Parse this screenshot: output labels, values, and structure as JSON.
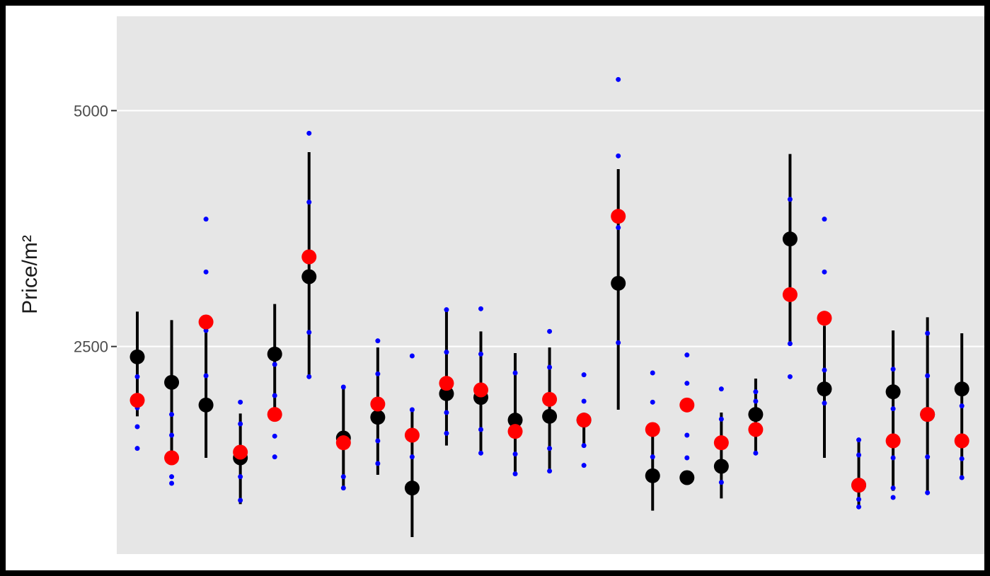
{
  "chart_data": {
    "type": "scatter",
    "ylabel": "Price/m²",
    "yticks": [
      2500,
      5000
    ],
    "ylim": [
      300,
      6000
    ],
    "grid": true,
    "legend": "none",
    "colors": {
      "panel": "#e6e6e6",
      "grid": "#ffffff",
      "point_black": "#000000",
      "point_red": "#ff0000",
      "point_blue": "#0000ff"
    },
    "groups": [
      {
        "black": 2390,
        "red": 1930,
        "range": [
          1760,
          2870
        ],
        "blue": [
          1420,
          1650,
          1850,
          2180
        ]
      },
      {
        "black": 2120,
        "red": 1320,
        "range": [
          1320,
          2780
        ],
        "blue": [
          1050,
          1120,
          1560,
          1780
        ]
      },
      {
        "black": 1880,
        "red": 2760,
        "range": [
          1320,
          2730
        ],
        "blue": [
          2190,
          2670,
          3290,
          3850
        ]
      },
      {
        "black": 1320,
        "red": 1380,
        "range": [
          830,
          1790
        ],
        "blue": [
          870,
          1120,
          1340,
          1680,
          1910
        ]
      },
      {
        "black": 2420,
        "red": 1780,
        "range": [
          1760,
          2950
        ],
        "blue": [
          1330,
          1550,
          1980,
          2310
        ]
      },
      {
        "black": 3240,
        "red": 3450,
        "range": [
          2160,
          4560
        ],
        "blue": [
          2180,
          2650,
          4030,
          4760
        ]
      },
      {
        "black": 1530,
        "red": 1480,
        "range": [
          1000,
          2080
        ],
        "blue": [
          1000,
          1120,
          1580,
          2070
        ]
      },
      {
        "black": 1750,
        "red": 1890,
        "range": [
          1140,
          2490
        ],
        "blue": [
          1260,
          1500,
          2210,
          2560
        ]
      },
      {
        "black": 1000,
        "red": 1560,
        "range": [
          480,
          1820
        ],
        "blue": [
          1330,
          1830,
          2400
        ]
      },
      {
        "black": 2000,
        "red": 2110,
        "range": [
          1450,
          2880
        ],
        "blue": [
          1580,
          1800,
          2440,
          2890
        ]
      },
      {
        "black": 1960,
        "red": 2040,
        "range": [
          1350,
          2660
        ],
        "blue": [
          1370,
          1620,
          2420,
          2900
        ]
      },
      {
        "black": 1720,
        "red": 1600,
        "range": [
          1150,
          2430
        ],
        "blue": [
          1150,
          1360,
          2220
        ]
      },
      {
        "black": 1760,
        "red": 1940,
        "range": [
          1170,
          2490
        ],
        "blue": [
          1180,
          1420,
          2280,
          2660
        ]
      },
      {
        "black": 1720,
        "red": 1720,
        "range": [
          1440,
          1780
        ],
        "blue": [
          1240,
          1450,
          1920,
          2200
        ]
      },
      {
        "black": 3170,
        "red": 3880,
        "range": [
          1830,
          4380
        ],
        "blue": [
          2540,
          3130,
          3760,
          4520,
          5330
        ]
      },
      {
        "black": 1130,
        "red": 1620,
        "range": [
          760,
          1650
        ],
        "blue": [
          1330,
          1910,
          2220
        ]
      },
      {
        "black": 1110,
        "red": 1880,
        "range": [
          1100,
          1130
        ],
        "blue": [
          1320,
          1560,
          2110,
          2410
        ]
      },
      {
        "black": 1230,
        "red": 1480,
        "range": [
          890,
          1800
        ],
        "blue": [
          1060,
          1730,
          2050
        ]
      },
      {
        "black": 1780,
        "red": 1620,
        "range": [
          1380,
          2160
        ],
        "blue": [
          1370,
          1920,
          2020
        ]
      },
      {
        "black": 3640,
        "red": 3050,
        "range": [
          2540,
          4540
        ],
        "blue": [
          2180,
          2530,
          4060
        ]
      },
      {
        "black": 2050,
        "red": 2800,
        "range": [
          1320,
          2720
        ],
        "blue": [
          1900,
          2250,
          3290,
          3850
        ]
      },
      {
        "black": 1030,
        "red": 1030,
        "range": [
          780,
          1510
        ],
        "blue": [
          800,
          880,
          1350,
          1510
        ]
      },
      {
        "black": 2020,
        "red": 1500,
        "range": [
          970,
          2670
        ],
        "blue": [
          900,
          1000,
          1320,
          1840,
          2260
        ]
      },
      {
        "black": 1780,
        "red": 1780,
        "range": [
          930,
          2810
        ],
        "blue": [
          950,
          1330,
          2190,
          2640
        ]
      },
      {
        "black": 2050,
        "red": 1500,
        "range": [
          1110,
          2640
        ],
        "blue": [
          1110,
          1310,
          1870,
          2030
        ]
      }
    ]
  }
}
